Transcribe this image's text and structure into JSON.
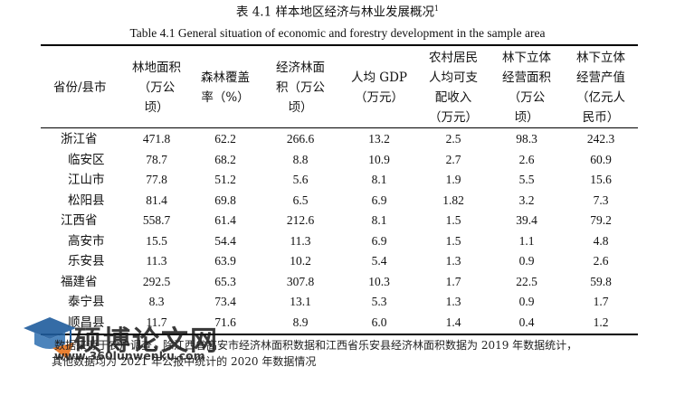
{
  "caption_cn": "表 4.1  样本地区经济与林业发展概况",
  "caption_note_mark": "1",
  "caption_en": "Table 4.1 General situation of economic and forestry development in the sample area",
  "columns": [
    "省份/县市",
    "林地面积\n（万公\n顷）",
    "森林覆盖\n率（%）",
    "经济林面\n积（万公\n顷）",
    "人均 GDP\n（万元）",
    "农村居民\n人均可支\n配收入\n（万元）",
    "林下立体\n经营面积\n（万公\n顷）",
    "林下立体\n经营产值\n（亿元人\n民币）"
  ],
  "rows": [
    {
      "name": "浙江省",
      "level": "province",
      "cells": [
        "471.8",
        "62.2",
        "266.6",
        "13.2",
        "2.5",
        "98.3",
        "242.3"
      ]
    },
    {
      "name": "临安区",
      "level": "county",
      "cells": [
        "78.7",
        "68.2",
        "8.8",
        "10.9",
        "2.7",
        "2.6",
        "60.9"
      ]
    },
    {
      "name": "江山市",
      "level": "county",
      "cells": [
        "77.8",
        "51.2",
        "5.6",
        "8.1",
        "1.9",
        "5.5",
        "15.6"
      ]
    },
    {
      "name": "松阳县",
      "level": "county",
      "cells": [
        "81.4",
        "69.8",
        "6.5",
        "6.9",
        "1.82",
        "3.2",
        "7.3"
      ]
    },
    {
      "name": "江西省",
      "level": "province",
      "cells": [
        "558.7",
        "61.4",
        "212.6",
        "8.1",
        "1.5",
        "39.4",
        "79.2"
      ]
    },
    {
      "name": "高安市",
      "level": "county",
      "cells": [
        "15.5",
        "54.4",
        "11.3",
        "6.9",
        "1.5",
        "1.1",
        "4.8"
      ]
    },
    {
      "name": "乐安县",
      "level": "county",
      "cells": [
        "11.3",
        "63.9",
        "10.2",
        "5.4",
        "1.3",
        "0.9",
        "2.6"
      ]
    },
    {
      "name": "福建省",
      "level": "province",
      "cells": [
        "292.5",
        "65.3",
        "307.8",
        "10.3",
        "1.7",
        "22.5",
        "59.8"
      ]
    },
    {
      "name": "泰宁县",
      "level": "county",
      "cells": [
        "8.3",
        "73.4",
        "13.1",
        "5.3",
        "1.3",
        "0.9",
        "1.7"
      ]
    },
    {
      "name": "顺昌县",
      "level": "county",
      "cells": [
        "11.7",
        "71.6",
        "8.9",
        "6.0",
        "1.4",
        "0.4",
        "1.2"
      ]
    }
  ],
  "footnote": {
    "line1": "数据来源于农户调查，除江西省高安市经济林面积数据和江西省乐安县经济林面积数据为 2019 年数据统计，",
    "line2": "其他数据均为 2021 年公报中统计的 2020 年数据情况"
  },
  "watermark": {
    "brand": "硕博论文网",
    "url": "www.360lunwenku.com"
  }
}
